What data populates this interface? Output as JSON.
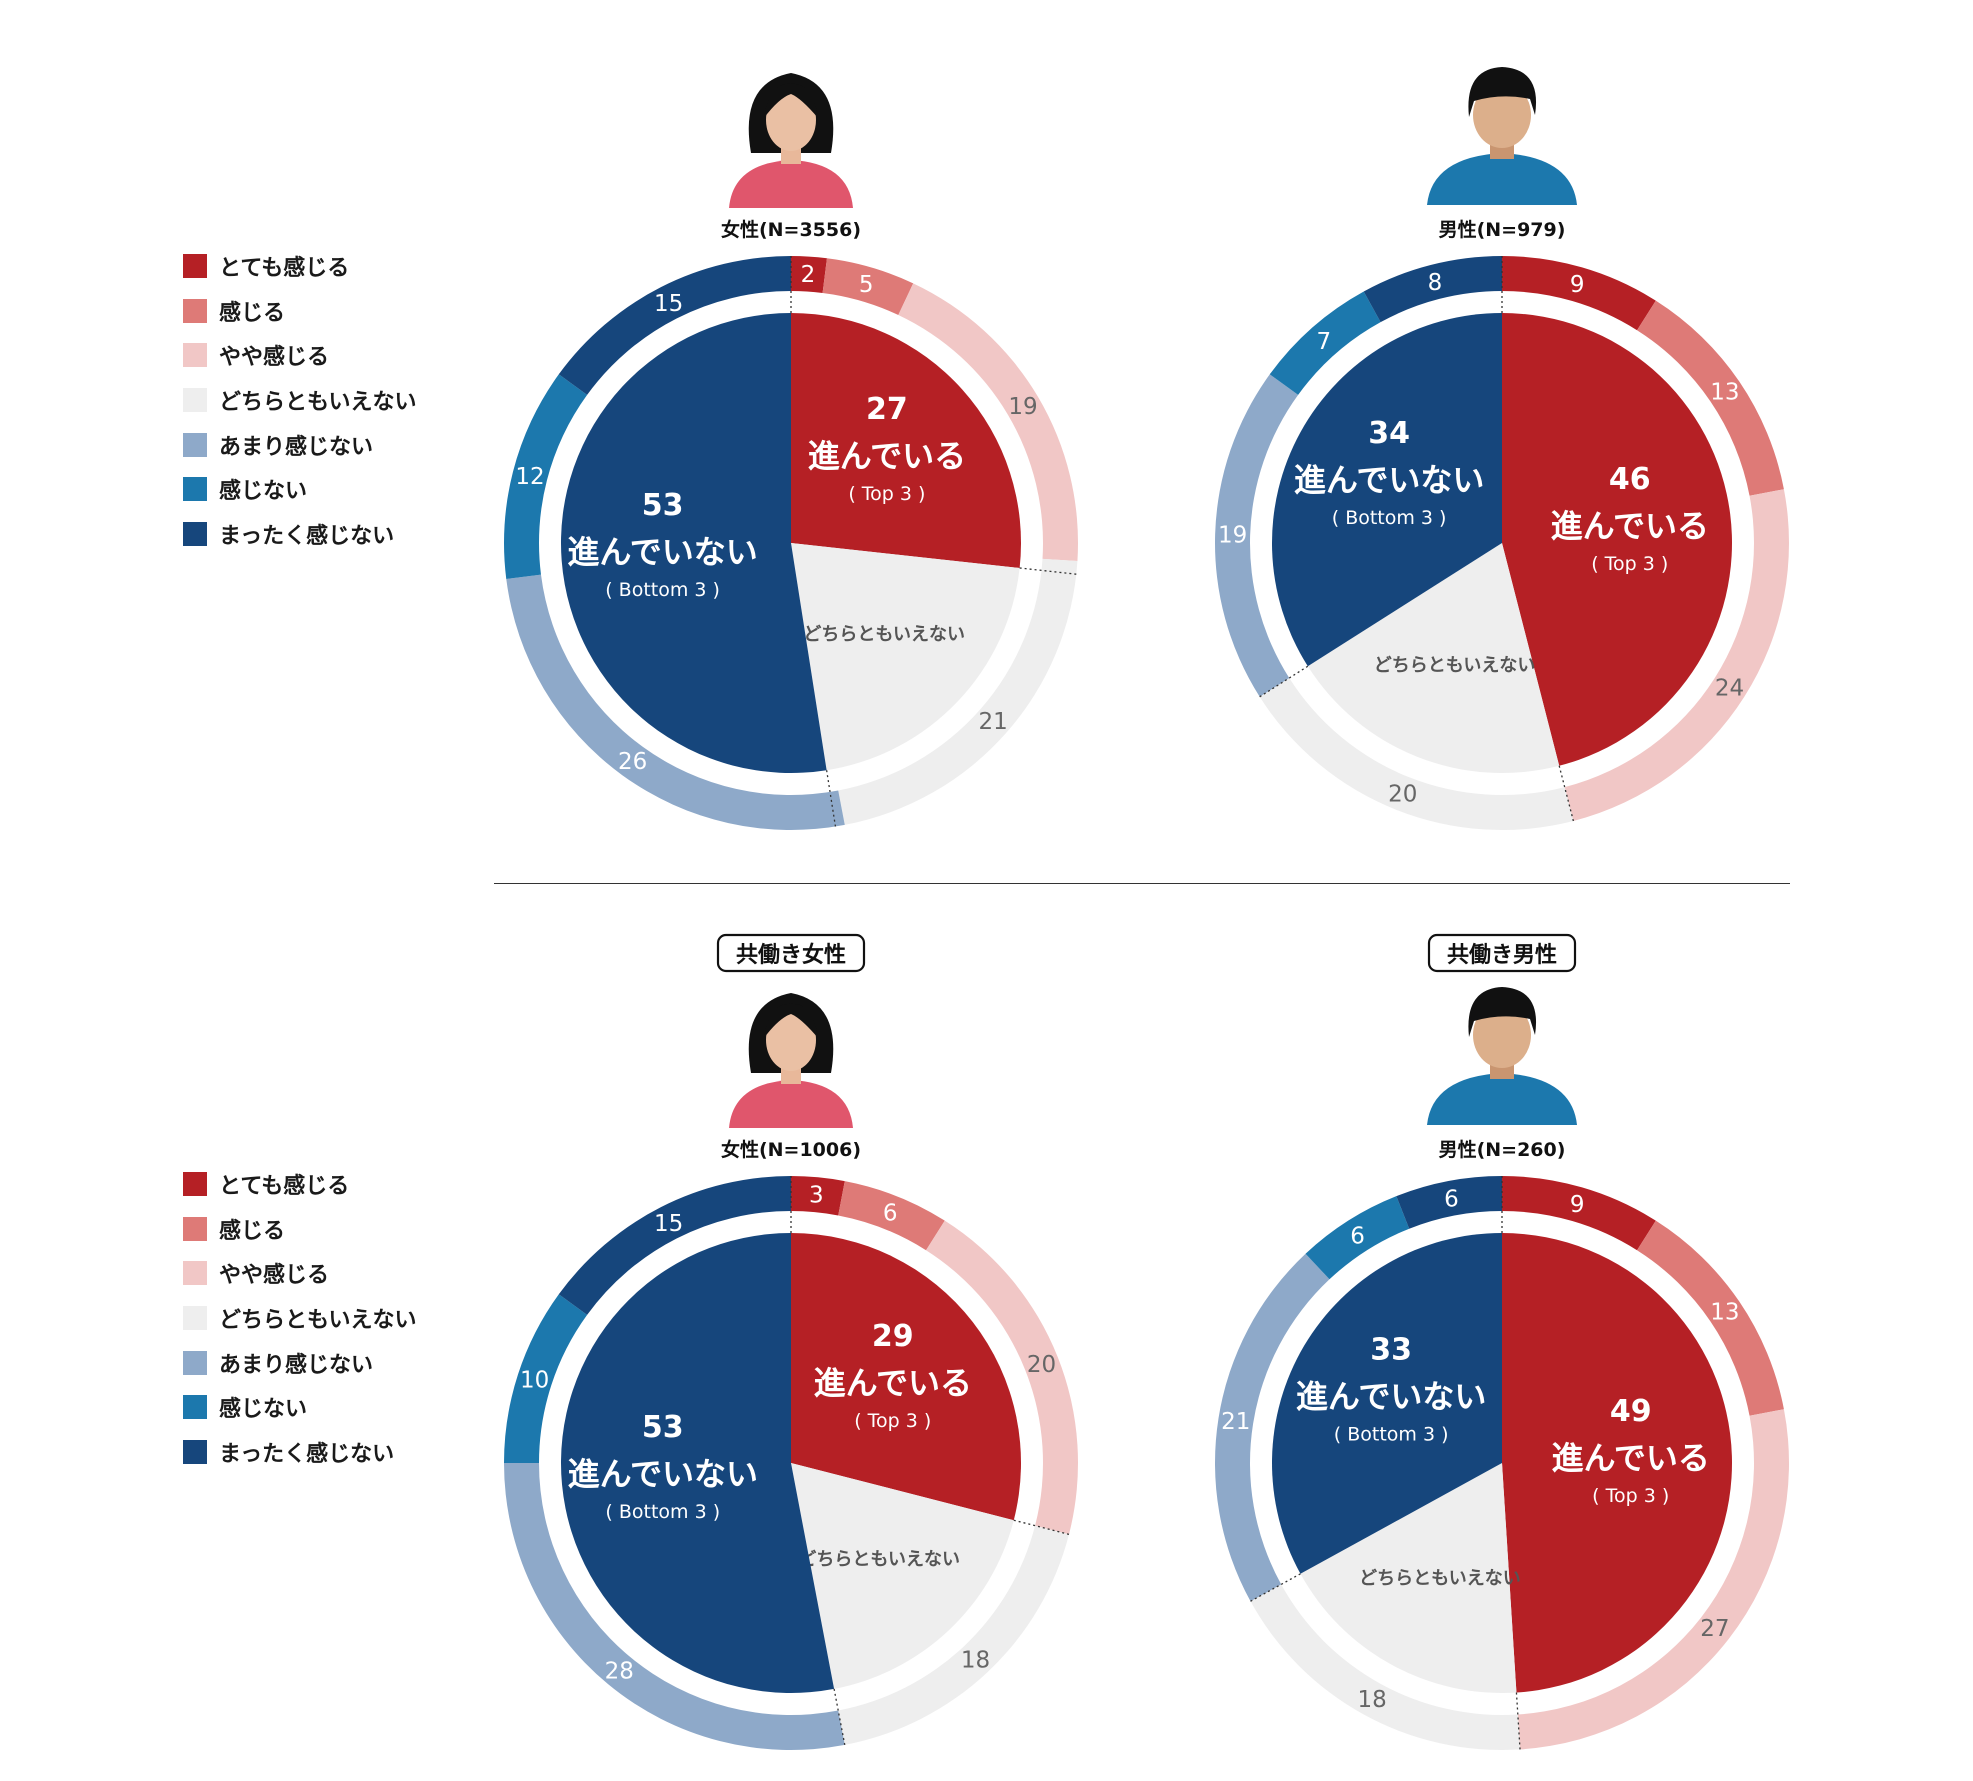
{
  "legend": {
    "items": [
      {
        "label": "とても感じる",
        "color": "#b52025"
      },
      {
        "label": "感じる",
        "color": "#de7a77"
      },
      {
        "label": "やや感じる",
        "color": "#f1c7c6"
      },
      {
        "label": "どちらともいえない",
        "color": "#eeeeee"
      },
      {
        "label": "あまり感じない",
        "color": "#8ea9c9"
      },
      {
        "label": "感じない",
        "color": "#1c78ad"
      },
      {
        "label": "まったく感じない",
        "color": "#16467c"
      }
    ]
  },
  "chart_data": [
    {
      "type": "pie",
      "header": "",
      "gender": "female",
      "sample_label": "女性(N=3556)",
      "outer": [
        2,
        5,
        19,
        21,
        26,
        12,
        15
      ],
      "inner": [
        {
          "value": 27,
          "label": "進んでいる",
          "sub": "( Top 3 )"
        },
        {
          "value": 21,
          "label": "どちらともいえない",
          "sub": ""
        },
        {
          "value": 53,
          "label": "進んでいない",
          "sub": "( Bottom 3 )"
        }
      ]
    },
    {
      "type": "pie",
      "header": "",
      "gender": "male",
      "sample_label": "男性(N=979)",
      "outer": [
        9,
        13,
        24,
        20,
        19,
        7,
        8
      ],
      "inner": [
        {
          "value": 46,
          "label": "進んでいる",
          "sub": "( Top 3 )"
        },
        {
          "value": 20,
          "label": "どちらともいえない",
          "sub": ""
        },
        {
          "value": 34,
          "label": "進んでいない",
          "sub": "( Bottom 3 )"
        }
      ]
    },
    {
      "type": "pie",
      "header": "共働き女性",
      "gender": "female",
      "sample_label": "女性(N=1006)",
      "outer": [
        3,
        6,
        20,
        18,
        28,
        10,
        15
      ],
      "inner": [
        {
          "value": 29,
          "label": "進んでいる",
          "sub": "( Top 3 )"
        },
        {
          "value": 18,
          "label": "どちらともいえない",
          "sub": ""
        },
        {
          "value": 53,
          "label": "進んでいない",
          "sub": "( Bottom 3 )"
        }
      ]
    },
    {
      "type": "pie",
      "header": "共働き男性",
      "gender": "male",
      "sample_label": "男性(N=260)",
      "outer": [
        9,
        13,
        27,
        18,
        21,
        6,
        6
      ],
      "inner": [
        {
          "value": 49,
          "label": "進んでいる",
          "sub": "( Top 3 )"
        },
        {
          "value": 18,
          "label": "どちらともいえない",
          "sub": ""
        },
        {
          "value": 33,
          "label": "進んでいない",
          "sub": "( Bottom 3 )"
        }
      ]
    }
  ]
}
